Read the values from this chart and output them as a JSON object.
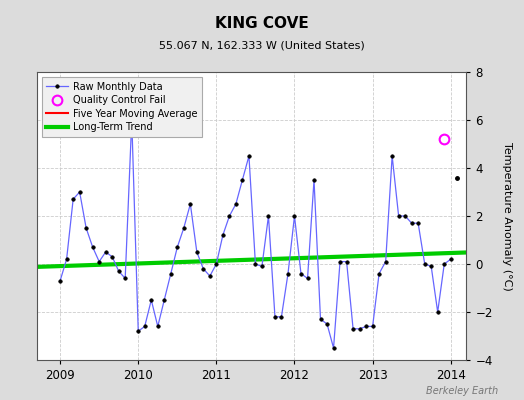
{
  "title": "KING COVE",
  "subtitle": "55.067 N, 162.333 W (United States)",
  "ylabel": "Temperature Anomaly (°C)",
  "watermark": "Berkeley Earth",
  "background_color": "#dcdcdc",
  "plot_bg_color": "#ffffff",
  "ylim": [
    -4,
    8
  ],
  "yticks": [
    -4,
    -2,
    0,
    2,
    4,
    6,
    8
  ],
  "xlim": [
    2008.7,
    2014.2
  ],
  "xticks": [
    2009,
    2010,
    2011,
    2012,
    2013,
    2014
  ],
  "raw_x": [
    2009.0,
    2009.083,
    2009.167,
    2009.25,
    2009.333,
    2009.417,
    2009.5,
    2009.583,
    2009.667,
    2009.75,
    2009.833,
    2009.917,
    2010.0,
    2010.083,
    2010.167,
    2010.25,
    2010.333,
    2010.417,
    2010.5,
    2010.583,
    2010.667,
    2010.75,
    2010.833,
    2010.917,
    2011.0,
    2011.083,
    2011.167,
    2011.25,
    2011.333,
    2011.417,
    2011.5,
    2011.583,
    2011.667,
    2011.75,
    2011.833,
    2011.917,
    2012.0,
    2012.083,
    2012.167,
    2012.25,
    2012.333,
    2012.417,
    2012.5,
    2012.583,
    2012.667,
    2012.75,
    2012.833,
    2012.917,
    2013.0,
    2013.083,
    2013.167,
    2013.25,
    2013.333,
    2013.417,
    2013.5,
    2013.583,
    2013.667,
    2013.75,
    2013.833,
    2013.917,
    2014.0
  ],
  "raw_y": [
    -0.7,
    0.2,
    2.7,
    3.0,
    1.5,
    0.7,
    0.1,
    0.5,
    0.3,
    -0.3,
    -0.6,
    6.0,
    -2.8,
    -2.6,
    -1.5,
    -2.6,
    -1.5,
    -0.4,
    0.7,
    1.5,
    2.5,
    0.5,
    -0.2,
    -0.5,
    0.0,
    1.2,
    2.0,
    2.5,
    3.5,
    4.5,
    0.0,
    -0.1,
    2.0,
    -2.2,
    -2.2,
    -0.4,
    2.0,
    -0.4,
    -0.6,
    3.5,
    -2.3,
    -2.5,
    -3.5,
    0.1,
    0.1,
    -2.7,
    -2.7,
    -2.6,
    -2.6,
    -0.4,
    0.1,
    4.5,
    2.0,
    2.0,
    1.7,
    1.7,
    0.0,
    -0.1,
    -2.0,
    0.0,
    0.2
  ],
  "disconnected_x": [
    2014.083
  ],
  "disconnected_y": [
    3.6
  ],
  "qc_fail_x": [
    2013.917
  ],
  "qc_fail_y": [
    5.2
  ],
  "trend_x": [
    2008.7,
    2014.2
  ],
  "trend_y": [
    -0.12,
    0.48
  ],
  "line_color": "#6666ff",
  "dot_color": "#000000",
  "qc_color": "#ff00ff",
  "trend_color": "#00cc00",
  "mavg_color": "#ff0000",
  "grid_color": "#cccccc",
  "grid_linestyle": "--"
}
